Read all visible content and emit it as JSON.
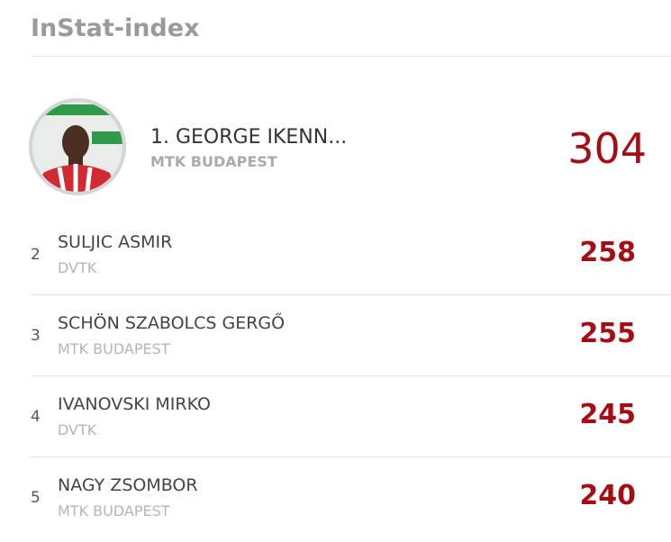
{
  "header": {
    "title": "InStat-index"
  },
  "leader": {
    "name": "1. GEORGE IKENN...",
    "team": "MTK BUDAPEST",
    "score": "304"
  },
  "rows": [
    {
      "rank": "2",
      "name": "SULJIC ASMIR",
      "team": "DVTK",
      "score": "258"
    },
    {
      "rank": "3",
      "name": "SCHÖN SZABOLCS GERGŐ",
      "team": "MTK BUDAPEST",
      "score": "255"
    },
    {
      "rank": "4",
      "name": "IVANOVSKI MIRKO",
      "team": "DVTK",
      "score": "245"
    },
    {
      "rank": "5",
      "name": "NAGY ZSOMBOR",
      "team": "MTK BUDAPEST",
      "score": "240"
    }
  ]
}
